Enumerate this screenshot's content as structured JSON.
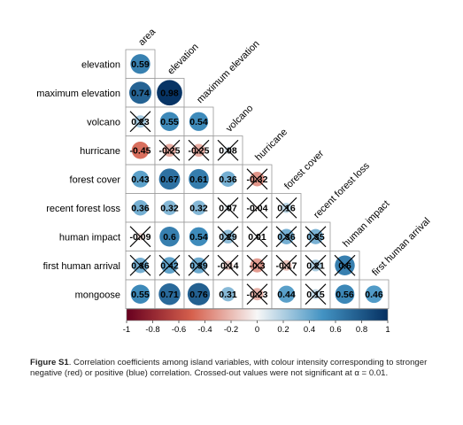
{
  "chart_data": {
    "type": "heatmap",
    "subtype": "lower-triangle correlation matrix (circle glyphs)",
    "row_labels": [
      "elevation",
      "maximum elevation",
      "volcano",
      "hurricane",
      "forest cover",
      "recent forest loss",
      "human impact",
      "first human arrival",
      "mongoose"
    ],
    "column_labels": [
      "area",
      "elevation",
      "maximum elevation",
      "volcano",
      "hurricane",
      "forest cover",
      "recent forest loss",
      "human impact",
      "first human arrival"
    ],
    "cells": [
      [
        {
          "v": 0.59,
          "label": "0.59",
          "ns": false
        }
      ],
      [
        {
          "v": 0.74,
          "label": "0.74",
          "ns": false
        },
        {
          "v": 0.98,
          "label": "0.98",
          "ns": false
        }
      ],
      [
        {
          "v": 0.23,
          "label": "0.23",
          "ns": true
        },
        {
          "v": 0.55,
          "label": "0.55",
          "ns": false
        },
        {
          "v": 0.54,
          "label": "0.54",
          "ns": false
        }
      ],
      [
        {
          "v": -0.45,
          "label": "-0.45",
          "ns": false
        },
        {
          "v": -0.25,
          "label": "-0.25",
          "ns": true
        },
        {
          "v": -0.25,
          "label": "-0.25",
          "ns": true
        },
        {
          "v": 0.08,
          "label": "0.08",
          "ns": true
        }
      ],
      [
        {
          "v": 0.43,
          "label": "0.43",
          "ns": false
        },
        {
          "v": 0.67,
          "label": "0.67",
          "ns": false
        },
        {
          "v": 0.61,
          "label": "0.61",
          "ns": false
        },
        {
          "v": 0.36,
          "label": "0.36",
          "ns": false
        },
        {
          "v": -0.32,
          "label": "-0.32",
          "ns": true
        }
      ],
      [
        {
          "v": 0.36,
          "label": "0.36",
          "ns": false
        },
        {
          "v": 0.32,
          "label": "0.32",
          "ns": false
        },
        {
          "v": 0.32,
          "label": "0.32",
          "ns": false
        },
        {
          "v": 0.07,
          "label": "0.07",
          "ns": true
        },
        {
          "v": -0.04,
          "label": "-0.04",
          "ns": true
        },
        {
          "v": 0.16,
          "label": "0.16",
          "ns": true
        }
      ],
      [
        {
          "v": -0.09,
          "label": "-0.09",
          "ns": true
        },
        {
          "v": 0.6,
          "label": "0.6",
          "ns": false
        },
        {
          "v": 0.54,
          "label": "0.54",
          "ns": false
        },
        {
          "v": 0.29,
          "label": "0.29",
          "ns": true
        },
        {
          "v": 0.01,
          "label": "0.01",
          "ns": true
        },
        {
          "v": 0.36,
          "label": "0.36",
          "ns": true
        },
        {
          "v": 0.35,
          "label": "0.35",
          "ns": true
        }
      ],
      [
        {
          "v": 0.36,
          "label": "0.36",
          "ns": true
        },
        {
          "v": 0.42,
          "label": "0.42",
          "ns": true
        },
        {
          "v": 0.39,
          "label": "0.39",
          "ns": true
        },
        {
          "v": -0.14,
          "label": "-0.14",
          "ns": true
        },
        {
          "v": -0.3,
          "label": "-0.3",
          "ns": true
        },
        {
          "v": -0.17,
          "label": "-0.17",
          "ns": true
        },
        {
          "v": 0.21,
          "label": "0.21",
          "ns": true
        },
        {
          "v": 0.6,
          "label": "0.6",
          "ns": true
        }
      ],
      [
        {
          "v": 0.55,
          "label": "0.55",
          "ns": false
        },
        {
          "v": 0.71,
          "label": "0.71",
          "ns": false
        },
        {
          "v": 0.76,
          "label": "0.76",
          "ns": false
        },
        {
          "v": 0.31,
          "label": "0.31",
          "ns": false
        },
        {
          "v": -0.23,
          "label": "-0.23",
          "ns": true
        },
        {
          "v": 0.44,
          "label": "0.44",
          "ns": false
        },
        {
          "v": 0.15,
          "label": "0.15",
          "ns": true
        },
        {
          "v": 0.56,
          "label": "0.56",
          "ns": false
        },
        {
          "v": 0.46,
          "label": "0.46",
          "ns": false
        }
      ]
    ],
    "colorbar": {
      "range": [
        -1,
        1
      ],
      "ticks": [
        "-1",
        "-0.8",
        "-0.6",
        "-0.4",
        "-0.2",
        "0",
        "0.2",
        "0.4",
        "0.6",
        "0.8",
        "1"
      ],
      "colors": {
        "negative": "#67001f",
        "mid_negative": "#d6604d",
        "neutral": "#f7f7f7",
        "mid_positive": "#4393c3",
        "positive": "#053061"
      }
    },
    "legend": "colour bar below matrix",
    "grid": true
  },
  "caption": {
    "bold": "Figure S1",
    "text": ". Correlation coefficients among island variables, with colour intensity corresponding to stronger negative (red) or positive (blue) correlation. Crossed-out values were not significant at α = 0.01."
  }
}
